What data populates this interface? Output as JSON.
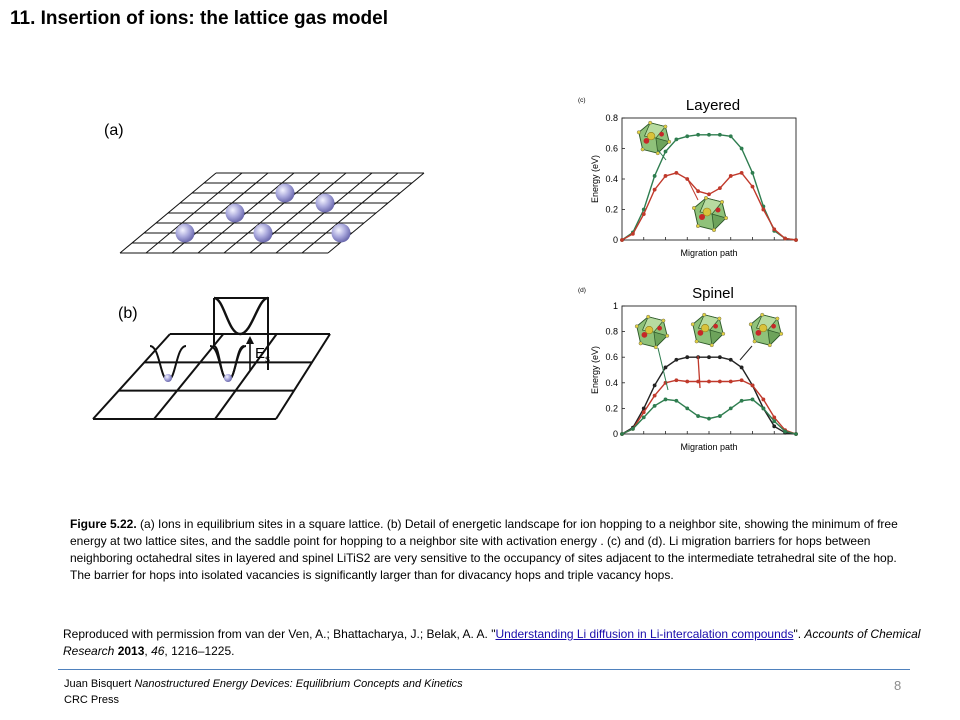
{
  "slide": {
    "title": "11. Insertion of ions: the lattice gas model",
    "page_number": "8"
  },
  "figure_left": {
    "label_a": "(a)",
    "label_b": "(b)",
    "es_label": "E",
    "es_sub": "s"
  },
  "chart_data": [
    {
      "type": "line",
      "panel_label": "(c)",
      "title": "Layered",
      "xlabel": "Migration path",
      "ylabel": "Energy (eV)",
      "ylim": [
        0,
        0.8
      ],
      "yticks": [
        "0",
        "0.2",
        "0.4",
        "0.6",
        "0.8"
      ],
      "x": [
        0,
        1,
        2,
        3,
        4,
        5,
        6,
        7,
        8,
        9,
        10,
        11,
        12,
        13,
        14,
        15,
        16
      ],
      "series": [
        {
          "color": "#2e7d4f",
          "values": [
            0,
            0.05,
            0.2,
            0.42,
            0.58,
            0.66,
            0.68,
            0.69,
            0.69,
            0.69,
            0.68,
            0.6,
            0.44,
            0.22,
            0.06,
            0.01,
            0
          ]
        },
        {
          "color": "#c0392b",
          "values": [
            0,
            0.04,
            0.17,
            0.33,
            0.42,
            0.44,
            0.4,
            0.32,
            0.3,
            0.34,
            0.42,
            0.44,
            0.35,
            0.2,
            0.07,
            0.01,
            0
          ]
        }
      ]
    },
    {
      "type": "line",
      "panel_label": "(d)",
      "title": "Spinel",
      "xlabel": "Migration path",
      "ylabel": "Energy (eV)",
      "ylim": [
        0,
        1
      ],
      "yticks": [
        "0",
        "0.2",
        "0.4",
        "0.6",
        "0.8",
        "1"
      ],
      "x": [
        0,
        1,
        2,
        3,
        4,
        5,
        6,
        7,
        8,
        9,
        10,
        11,
        12,
        13,
        14,
        15,
        16
      ],
      "series": [
        {
          "color": "#222222",
          "values": [
            0,
            0.05,
            0.2,
            0.38,
            0.52,
            0.58,
            0.6,
            0.6,
            0.6,
            0.6,
            0.58,
            0.52,
            0.38,
            0.2,
            0.06,
            0.01,
            0
          ]
        },
        {
          "color": "#c0392b",
          "values": [
            0,
            0.04,
            0.17,
            0.3,
            0.4,
            0.42,
            0.41,
            0.41,
            0.41,
            0.41,
            0.41,
            0.42,
            0.38,
            0.27,
            0.13,
            0.03,
            0
          ]
        },
        {
          "color": "#2e7d4f",
          "values": [
            0,
            0.04,
            0.13,
            0.22,
            0.27,
            0.26,
            0.2,
            0.14,
            0.12,
            0.14,
            0.2,
            0.26,
            0.27,
            0.2,
            0.1,
            0.02,
            0
          ]
        }
      ]
    }
  ],
  "caption": {
    "label": "Figure 5.22.",
    "text": " (a) Ions in equilibrium sites in a square lattice. (b) Detail of energetic landscape for ion hopping to a neighbor site, showing the minimum of free energy at two lattice sites, and the saddle point for hopping to a neighbor site with activation energy . (c) and (d). Li migration barriers for hops between neighboring octahedral sites in layered and spinel LiTiS2  are very sensitive to the occupancy of sites adjacent to the intermediate tetrahedral site of the hop. The barrier for hops into isolated vacancies is significantly larger than for divacancy hops and triple vacancy hops."
  },
  "reference": {
    "prefix": "Reproduced with permission from van der Ven, A.; Bhattacharya, J.; Belak, A. A. \"",
    "link_text": "Understanding Li diffusion in Li-intercalation compounds",
    "suffix": "\". ",
    "journal": "Accounts of Chemical Research",
    "year": " 2013",
    "volume_sep": ", ",
    "volume": "46",
    "pages": ", 1216–1225."
  },
  "footer": {
    "author": "Juan Bisquert  ",
    "book": "Nanostructured Energy Devices: Equilibrium Concepts and Kinetics",
    "publisher": "CRC Press"
  }
}
